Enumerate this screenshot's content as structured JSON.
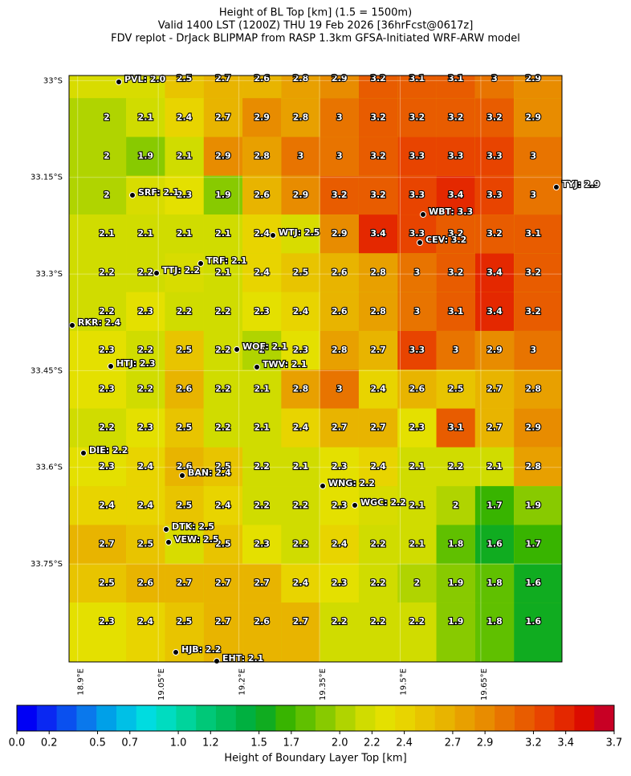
{
  "chart_data": {
    "type": "map",
    "title": [
      "Height of BL Top [km] (1.5 = 1500m)",
      "Valid 1400 LST (1200Z) THU 19 Feb 2026 [36hrFcst@0617z]",
      "FDV replot - DrJack BLIPMAP from RASP 1.3km GFSA-Initiated WRF-ARW model"
    ],
    "xlim": [
      18.884,
      19.801
    ],
    "ylim": [
      -33.902,
      -32.992
    ],
    "xticks": [
      {
        "value": 18.9,
        "label": "18.9°E"
      },
      {
        "value": 19.05,
        "label": "19.05°E"
      },
      {
        "value": 19.2,
        "label": "19.2°E"
      },
      {
        "value": 19.35,
        "label": "19.35°E"
      },
      {
        "value": 19.5,
        "label": "19.5°E"
      },
      {
        "value": 19.65,
        "label": "19.65°E"
      }
    ],
    "yticks": [
      {
        "value": -33,
        "label": "33°S"
      },
      {
        "value": -33.15,
        "label": "33.15°S"
      },
      {
        "value": -33.3,
        "label": "33.3°S"
      },
      {
        "value": -33.45,
        "label": "33.45°S"
      },
      {
        "value": -33.6,
        "label": "33.6°S"
      },
      {
        "value": -33.75,
        "label": "33.75°S"
      }
    ],
    "values": [
      [
        null,
        null,
        2.5,
        2.7,
        2.6,
        2.8,
        2.9,
        3.2,
        3.1,
        3.1,
        3.0,
        2.9
      ],
      [
        2.0,
        2.1,
        2.4,
        2.7,
        2.9,
        2.8,
        3.0,
        3.2,
        3.2,
        3.2,
        3.2,
        2.9
      ],
      [
        2.0,
        1.9,
        2.1,
        2.9,
        2.8,
        3.0,
        3.0,
        3.2,
        3.3,
        3.3,
        3.3,
        3.0
      ],
      [
        2.0,
        null,
        2.3,
        1.9,
        2.6,
        2.9,
        3.2,
        3.2,
        3.3,
        3.4,
        3.3,
        3.0
      ],
      [
        2.1,
        2.1,
        2.1,
        2.1,
        2.4,
        null,
        2.9,
        3.4,
        3.3,
        3.2,
        3.2,
        3.1
      ],
      [
        2.2,
        2.2,
        null,
        2.1,
        2.4,
        2.5,
        2.6,
        2.8,
        3.0,
        3.2,
        3.4,
        3.2
      ],
      [
        2.2,
        2.3,
        2.2,
        2.2,
        2.3,
        2.4,
        2.6,
        2.8,
        3.0,
        3.1,
        3.4,
        3.2
      ],
      [
        2.3,
        2.2,
        2.5,
        2.2,
        2.0,
        2.3,
        2.8,
        2.7,
        3.3,
        3.0,
        2.9,
        3.0
      ],
      [
        2.3,
        2.2,
        2.6,
        2.2,
        2.1,
        2.8,
        3.0,
        2.4,
        2.6,
        2.5,
        2.7,
        2.8
      ],
      [
        2.2,
        2.3,
        2.5,
        2.2,
        2.1,
        2.4,
        2.7,
        2.7,
        2.3,
        3.1,
        2.7,
        2.9
      ],
      [
        2.3,
        2.4,
        2.6,
        2.5,
        2.2,
        2.1,
        2.3,
        2.4,
        2.1,
        2.2,
        2.1,
        2.8
      ],
      [
        2.4,
        2.4,
        2.5,
        2.4,
        2.2,
        2.2,
        2.3,
        null,
        2.1,
        2.0,
        1.7,
        1.9
      ],
      [
        2.7,
        2.5,
        null,
        2.5,
        2.3,
        2.2,
        2.4,
        2.2,
        2.1,
        1.8,
        1.6,
        1.7
      ],
      [
        2.5,
        2.6,
        2.7,
        2.7,
        2.7,
        2.4,
        2.3,
        2.2,
        2.0,
        1.9,
        1.8,
        1.6
      ],
      [
        2.3,
        2.4,
        2.5,
        2.7,
        2.6,
        2.7,
        2.2,
        2.2,
        2.2,
        1.9,
        1.8,
        1.6
      ]
    ],
    "stations": [
      "PVL: 2.0",
      "SRF: 2.1",
      "WTJ: 2.5",
      "TRF: 2.1",
      "TTJ: 2.2",
      "RKR: 2.4",
      "WOF: 2.1",
      "TWV: 2.1",
      "HTJ: 2.3",
      "DIE: 2.2",
      "BAN: 2.4",
      "WNG: 2.2",
      "WGC: 2.2",
      "DTK: 2.5",
      "VEW: 2.5",
      "HJB: 2.2",
      "EHT: 2.1",
      "TYJ: 2.9",
      "WBT: 3.3",
      "CEV: 3.2"
    ],
    "colorbar": {
      "label": "Height of Boundary Layer Top [km]",
      "lim": [
        0,
        3.7
      ],
      "ticks": [
        {
          "value": 0,
          "label": "0.0"
        },
        0.2,
        0.5,
        0.7,
        {
          "value": 1,
          "label": "1.0"
        },
        1.2,
        1.5,
        1.7,
        {
          "value": 2,
          "label": "2.0"
        },
        2.2,
        2.4,
        2.7,
        2.9,
        3.2,
        3.4,
        3.7
      ],
      "colors": [
        "#0000f5",
        "#0a28f2",
        "#0a50ef",
        "#0a78ec",
        "#00a0e8",
        "#00c0e6",
        "#00dce0",
        "#00dcc0",
        "#00d49c",
        "#00c878",
        "#00bc5c",
        "#00b040",
        "#10ac20",
        "#38b400",
        "#60c000",
        "#88ca00",
        "#b0d400",
        "#d0dc00",
        "#e4e000",
        "#e8d400",
        "#e8c400",
        "#e8b400",
        "#e8a000",
        "#e88c00",
        "#e87400",
        "#e85c00",
        "#e84400",
        "#e42800",
        "#dc0c00",
        "#c80024"
      ]
    }
  }
}
